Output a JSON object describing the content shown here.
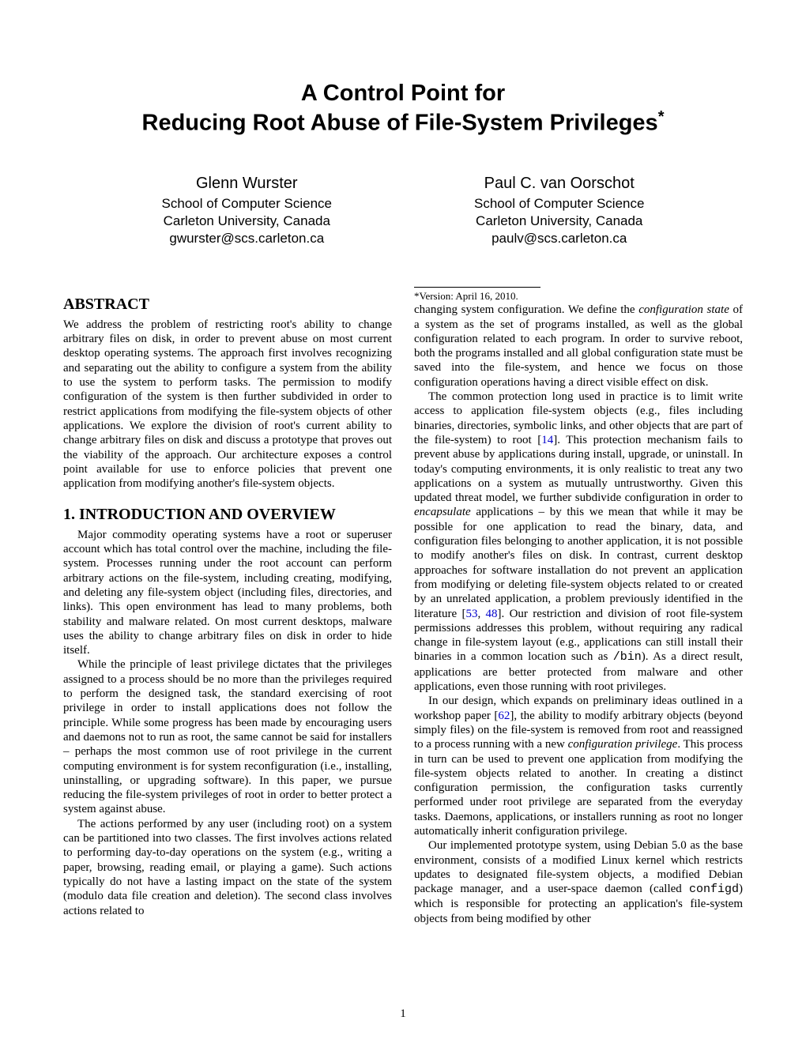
{
  "title": {
    "line1": "A Control Point for",
    "line2": "Reducing Root Abuse of File-System Privileges",
    "marker": "*"
  },
  "authors": [
    {
      "name": "Glenn Wurster",
      "affil1": "School of Computer Science",
      "affil2": "Carleton University, Canada",
      "email": "gwurster@scs.carleton.ca"
    },
    {
      "name": "Paul C. van Oorschot",
      "affil1": "School of Computer Science",
      "affil2": "Carleton University, Canada",
      "email": "paulv@scs.carleton.ca"
    }
  ],
  "abstract_head": "ABSTRACT",
  "abstract_body": "We address the problem of restricting root's ability to change arbitrary files on disk, in order to prevent abuse on most current desktop operating systems. The approach first involves recognizing and separating out the ability to configure a system from the ability to use the system to perform tasks. The permission to modify configuration of the system is then further subdivided in order to restrict applications from modifying the file-system objects of other applications. We explore the division of root's current ability to change arbitrary files on disk and discuss a prototype that proves out the viability of the approach. Our architecture exposes a control point available for use to enforce policies that prevent one application from modifying another's file-system objects.",
  "section1_head": "1.   INTRODUCTION AND OVERVIEW",
  "s1p1": "Major commodity operating systems have a root or superuser account which has total control over the machine, including the file-system. Processes running under the root account can perform arbitrary actions on the file-system, including creating, modifying, and deleting any file-system object (including files, directories, and links). This open environment has lead to many problems, both stability and malware related. On most current desktops, malware uses the ability to change arbitrary files on disk in order to hide itself.",
  "s1p2": "While the principle of least privilege dictates that the privileges assigned to a process should be no more than the privileges required to perform the designed task, the standard exercising of root privilege in order to install applications does not follow the principle. While some progress has been made by encouraging users and daemons not to run as root, the same cannot be said for installers – perhaps the most common use of root privilege in the current computing environment is for system reconfiguration (i.e., installing, uninstalling, or upgrading software). In this paper, we pursue reducing the file-system privileges of root in order to better protect a system against abuse.",
  "s1p3": "The actions performed by any user (including root) on a system can be partitioned into two classes. The first involves actions related to performing day-to-day operations on the system (e.g., writing a paper, browsing, reading email, or playing a game). Such actions typically do not have a lasting impact on the state of the system (modulo data file creation and deletion). The second class involves actions related to",
  "footnote": "*Version: April 16, 2010.",
  "col2p1a": "changing system configuration. We define the ",
  "col2p1_emph1": "configuration state",
  "col2p1b": " of a system as the set of programs installed, as well as the global configuration related to each program. In order to survive reboot, both the programs installed and all global configuration state must be saved into the file-system, and hence we focus on those configuration operations having a direct visible effect on disk.",
  "col2p2a": "The common protection long used in practice is to limit write access to application file-system objects (e.g., files including binaries, directories, symbolic links, and other objects that are part of the file-system) to root [",
  "col2p2_cite1": "14",
  "col2p2b": "]. This protection mechanism fails to prevent abuse by applications during install, upgrade, or uninstall. In today's computing environments, it is only realistic to treat any two applications on a system as mutually untrustworthy. Given this updated threat model, we further subdivide configuration in order to ",
  "col2p2_emph1": "encapsulate",
  "col2p2c": " applications – by this we mean that while it may be possible for one application to read the binary, data, and configuration files belonging to another application, it is not possible to modify another's files on disk. In contrast, current desktop approaches for software installation do not prevent an application from modifying or deleting file-system objects related to or created by an unrelated application, a problem previously identified in the literature [",
  "col2p2_cite2": "53",
  "col2p2_cite2b": ", ",
  "col2p2_cite3": "48",
  "col2p2d": "]. Our restriction and division of root file-system permissions addresses this problem, without requiring any radical change in file-system layout (e.g., applications can still install their binaries in a common location such as ",
  "col2p2_tt1": "/bin",
  "col2p2e": "). As a direct result, applications are better protected from malware and other applications, even those running with root privileges.",
  "col2p3a": "In our design, which expands on preliminary ideas outlined in a workshop paper [",
  "col2p3_cite1": "62",
  "col2p3b": "], the ability to modify arbitrary objects (beyond simply files) on the file-system is removed from root and reassigned to a process running with a new ",
  "col2p3_emph1": "configuration privilege",
  "col2p3c": ". This process in turn can be used to prevent one application from modifying the file-system objects related to another. In creating a distinct configuration permission, the configuration tasks currently performed under root privilege are separated from the everyday tasks. Daemons, applications, or installers running as root no longer automatically inherit configuration privilege.",
  "col2p4a": "Our implemented prototype system, using Debian 5.0 as the base environment, consists of a modified Linux kernel which restricts updates to designated file-system objects, a modified Debian package manager, and a user-space daemon (called ",
  "col2p4_tt1": "configd",
  "col2p4b": ") which is responsible for protecting an application's file-system objects from being modified by other",
  "pagenum": "1"
}
